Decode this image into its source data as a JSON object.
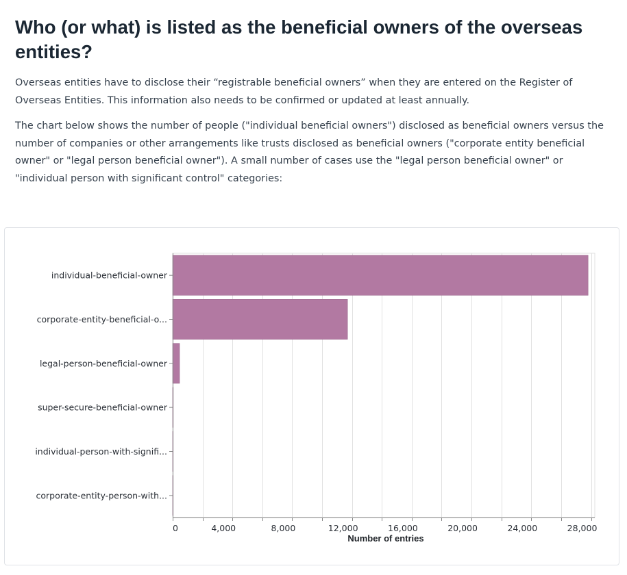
{
  "heading": "Who (or what) is listed as the beneficial owners of the overseas entities?",
  "paragraphs": [
    "Overseas entities have to disclose their “registrable beneficial owners” when they are entered on the Register of Overseas Entities. This information also needs to be confirmed or updated at least annually.",
    "The chart below shows the number of people (\"individual beneficial owners\") disclosed as beneficial owners versus the number of companies or other arrangements like trusts disclosed as beneficial owners (\"corporate entity beneficial owner\" or \"legal person beneficial owner\"). A small number of cases use the \"legal person beneficial owner\" or \"individual person with significant control\" categories:"
  ],
  "colors": {
    "bar": "#b279a2",
    "grid": "#e1e1e1",
    "axis": "#888888"
  },
  "chart_data": {
    "type": "bar",
    "orientation": "horizontal",
    "categories": [
      "individual-beneficial-owner",
      "corporate-entity-beneficial-o...",
      "legal-person-beneficial-owner",
      "super-secure-beneficial-owner",
      "individual-person-with-signifi...",
      "corporate-entity-person-with..."
    ],
    "values": [
      27800,
      11700,
      460,
      40,
      10,
      5
    ],
    "xlabel": "Number of entries",
    "ylabel": "",
    "xlim": [
      0,
      28250
    ],
    "xticks": [
      0,
      4000,
      8000,
      12000,
      16000,
      20000,
      24000,
      28000
    ],
    "xtick_labels": [
      "0",
      "4,000",
      "8,000",
      "12,000",
      "16,000",
      "20,000",
      "24,000",
      "28,000"
    ],
    "gridline_step": 2000,
    "grid": true
  }
}
